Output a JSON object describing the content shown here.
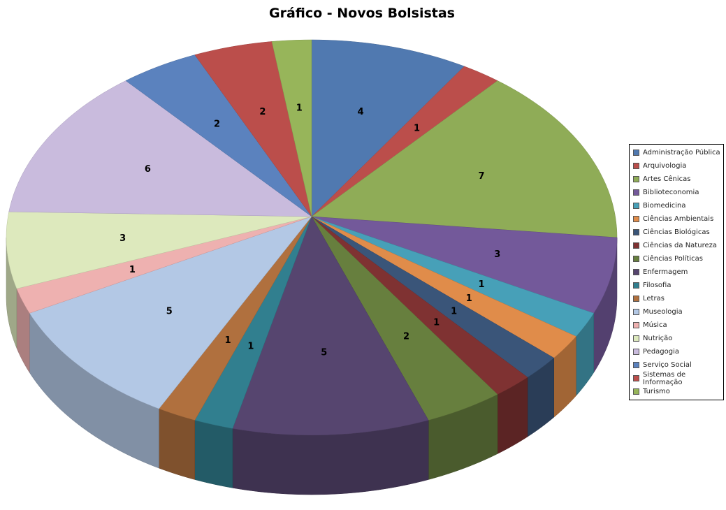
{
  "chart_data": {
    "type": "pie",
    "style": "3d",
    "title": "Gráfico - Novos Bolsistas",
    "legend_position": "right",
    "slices": [
      {
        "label": "Administração Pública",
        "value": 4,
        "color": "#5079B0"
      },
      {
        "label": "Arquivologia",
        "value": 1,
        "color": "#BB4E4B"
      },
      {
        "label": "Artes Cênicas",
        "value": 7,
        "color": "#8FAC57"
      },
      {
        "label": "Biblioteconomia",
        "value": 3,
        "color": "#73599A"
      },
      {
        "label": "Biomedicina",
        "value": 1,
        "color": "#47A0B8"
      },
      {
        "label": "Ciências Ambientais",
        "value": 1,
        "color": "#E08C4A"
      },
      {
        "label": "Ciências Biológicas",
        "value": 1,
        "color": "#3A5579"
      },
      {
        "label": "Ciências da Natureza",
        "value": 1,
        "color": "#7F3232"
      },
      {
        "label": "Ciências Políticas",
        "value": 2,
        "color": "#677F3E"
      },
      {
        "label": "Enfermagem",
        "value": 5,
        "color": "#56456F"
      },
      {
        "label": "Filosofia",
        "value": 1,
        "color": "#317F8F"
      },
      {
        "label": "Letras",
        "value": 1,
        "color": "#B0703E"
      },
      {
        "label": "Museologia",
        "value": 5,
        "color": "#B3C8E5"
      },
      {
        "label": "Música",
        "value": 1,
        "color": "#EEB1B0"
      },
      {
        "label": "Nutrição",
        "value": 3,
        "color": "#DDE9BD"
      },
      {
        "label": "Pedagogia",
        "value": 6,
        "color": "#C9BBDD"
      },
      {
        "label": "Serviço Social",
        "value": 2,
        "color": "#5B82BE"
      },
      {
        "label": "Sistemas de Informação",
        "value": 2,
        "color": "#BB4E4B"
      },
      {
        "label": "Turismo",
        "value": 1,
        "color": "#97B55A"
      }
    ]
  }
}
